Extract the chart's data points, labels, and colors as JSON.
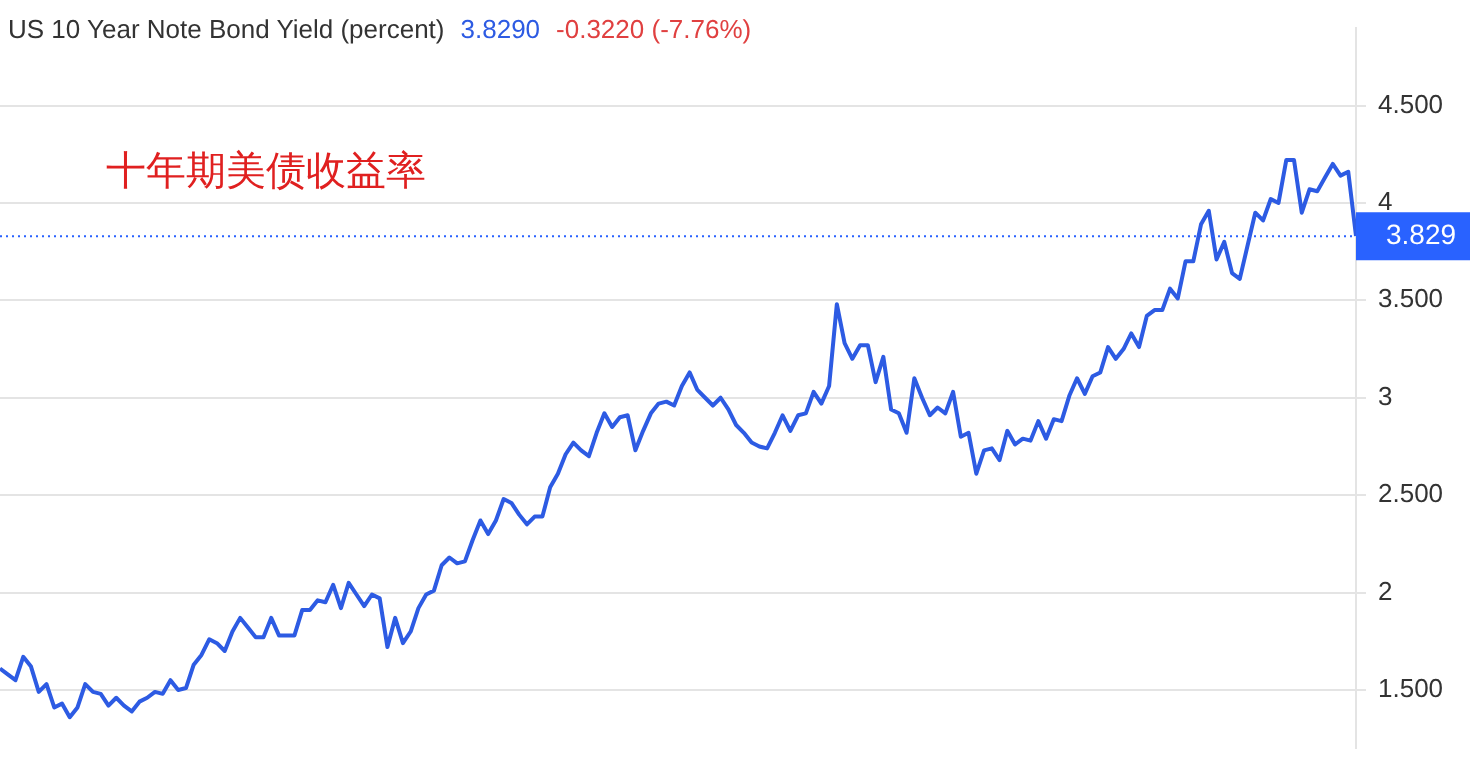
{
  "chart_data": {
    "type": "line",
    "title": "US 10 Year Note Bond Yield (percent)",
    "annotations": [
      "3.8290",
      "-0.3220 (-7.76%)",
      "十年期美债收益率"
    ],
    "categories": [
      null,
      null,
      null,
      null,
      null,
      null,
      null,
      null,
      null,
      null,
      null,
      null,
      null,
      null,
      null,
      null,
      null,
      null,
      null,
      null,
      null,
      null,
      null,
      null,
      null,
      null,
      null,
      null,
      null,
      null,
      null,
      null,
      null,
      null,
      null,
      null,
      null,
      null,
      null,
      null,
      null,
      null,
      null,
      null,
      null,
      null,
      null,
      null,
      null,
      null,
      null,
      null,
      null,
      null,
      null,
      null,
      null,
      null,
      null,
      null,
      null,
      null,
      null,
      null,
      null,
      null,
      null,
      null,
      null,
      null,
      null,
      null,
      null,
      null,
      null,
      null,
      null,
      null,
      null,
      null,
      null,
      null,
      null,
      null,
      null,
      null,
      null,
      null,
      null,
      null,
      null,
      null,
      null,
      null,
      null,
      null,
      null,
      null,
      null,
      null,
      null,
      null,
      null,
      null,
      null,
      null,
      null,
      null,
      null,
      null,
      null,
      null,
      null,
      null,
      null,
      null,
      null,
      null,
      null,
      null,
      null,
      null,
      null,
      null,
      null,
      null,
      null,
      null,
      null,
      null,
      null,
      null,
      null,
      null,
      null,
      null,
      null,
      null,
      null,
      null,
      null,
      null,
      null,
      null,
      null,
      null,
      null,
      null,
      null,
      null,
      null,
      null,
      null,
      null,
      null,
      null,
      null,
      null,
      null,
      null,
      null,
      null,
      null,
      null,
      null,
      null,
      null,
      null,
      null,
      null,
      null,
      null,
      null,
      null,
      null,
      null
    ],
    "series": [
      {
        "color": "#2d5be3",
        "values": [
          1.61,
          1.58,
          1.55,
          1.67,
          1.62,
          1.49,
          1.53,
          1.41,
          1.43,
          1.36,
          1.41,
          1.53,
          1.49,
          1.48,
          1.42,
          1.46,
          1.42,
          1.39,
          1.44,
          1.46,
          1.49,
          1.48,
          1.55,
          1.5,
          1.51,
          1.63,
          1.68,
          1.76,
          1.74,
          1.7,
          1.8,
          1.87,
          1.82,
          1.77,
          1.77,
          1.87,
          1.78,
          1.78,
          1.78,
          1.91,
          1.91,
          1.96,
          1.95,
          2.04,
          1.92,
          2.05,
          1.99,
          1.93,
          1.99,
          1.97,
          1.72,
          1.87,
          1.74,
          1.8,
          1.92,
          1.99,
          2.01,
          2.14,
          2.18,
          2.15,
          2.16,
          2.27,
          2.37,
          2.3,
          2.37,
          2.48,
          2.46,
          2.4,
          2.35,
          2.39,
          2.39,
          2.54,
          2.61,
          2.71,
          2.77,
          2.73,
          2.7,
          2.82,
          2.92,
          2.85,
          2.9,
          2.91,
          2.73,
          2.83,
          2.92,
          2.97,
          2.98,
          2.96,
          3.06,
          3.13,
          3.04,
          3.0,
          2.96,
          3.0,
          2.94,
          2.86,
          2.82,
          2.77,
          2.75,
          2.74,
          2.82,
          2.91,
          2.83,
          2.91,
          2.92,
          3.03,
          2.97,
          3.06,
          3.48,
          3.28,
          3.2,
          3.27,
          3.27,
          3.08,
          3.21,
          2.94,
          2.92,
          2.82,
          3.1,
          3.0,
          2.91,
          2.95,
          2.92,
          3.03,
          2.8,
          2.82,
          2.61,
          2.73,
          2.74,
          2.68,
          2.83,
          2.76,
          2.79,
          2.78,
          2.88,
          2.79,
          2.89,
          2.88,
          3.01,
          3.1,
          3.02,
          3.11,
          3.13,
          3.26,
          3.2,
          3.25,
          3.33,
          3.26,
          3.42,
          3.45,
          3.45,
          3.56,
          3.51,
          3.7,
          3.7,
          3.89,
          3.96,
          3.71,
          3.8,
          3.64,
          3.61,
          3.78,
          3.95,
          3.91,
          4.02,
          4.0,
          4.22,
          4.22,
          3.95,
          4.07,
          4.06,
          4.13,
          4.2,
          4.14,
          4.16,
          3.83
        ]
      }
    ],
    "ylim": [
      1.2,
      4.9
    ],
    "yticks": [
      {
        "value": 4.5,
        "label": "4.500"
      },
      4,
      {
        "value": 3.5,
        "label": "3.500"
      },
      3,
      {
        "value": 2.5,
        "label": "2.500"
      },
      2,
      {
        "value": 1.5,
        "label": "1.500"
      }
    ],
    "ref_lines": [
      {
        "axis": "y",
        "value": 3.829,
        "label": "3.829",
        "color": "#2962ff",
        "line_style": "dotted"
      }
    ],
    "grid": "y",
    "legend": false,
    "marker": "none",
    "line_style": "solid"
  }
}
